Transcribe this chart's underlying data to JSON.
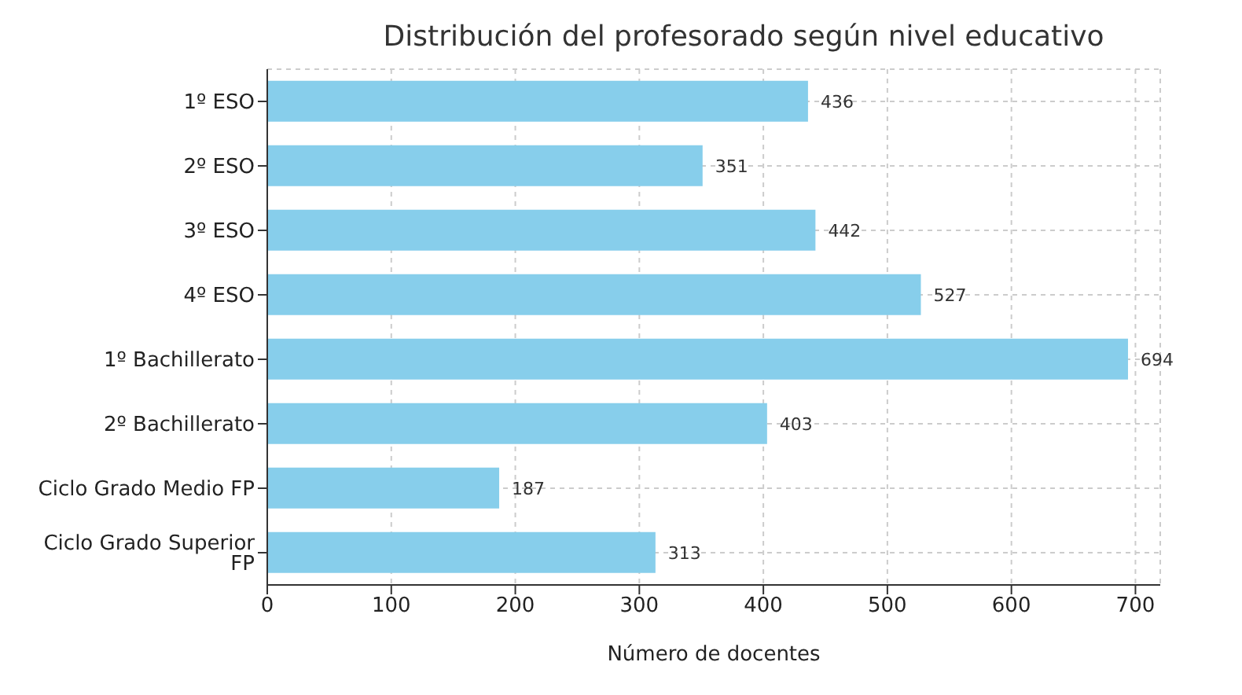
{
  "chart_data": {
    "type": "bar",
    "orientation": "horizontal",
    "title": "Distribución del profesorado según nivel educativo",
    "xlabel": "Número de docentes",
    "categories": [
      "1º ESO",
      "2º ESO",
      "3º ESO",
      "4º ESO",
      "1º Bachillerato",
      "2º Bachillerato",
      "Ciclo Grado Medio FP",
      "Ciclo Grado Superior FP"
    ],
    "values": [
      436,
      351,
      442,
      527,
      694,
      403,
      187,
      313
    ],
    "color": "#87ceeb",
    "xlim": [
      0,
      720
    ],
    "xticks": [
      0,
      100,
      200,
      300,
      400,
      500,
      600,
      700
    ],
    "grid": true,
    "data_labels": true
  }
}
